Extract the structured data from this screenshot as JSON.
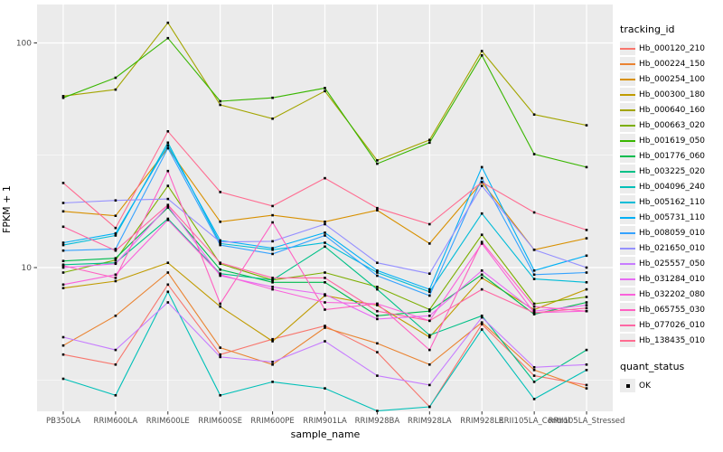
{
  "chart_data": {
    "type": "line",
    "title": "",
    "xlabel": "sample_name",
    "ylabel": "FPKM + 1",
    "y_scale": "log10",
    "y_ticks": [
      10,
      100
    ],
    "y_minor_ticks": [
      3.162,
      31.62
    ],
    "ylim": [
      2.2,
      150
    ],
    "grid": true,
    "panel_bg": "#EBEBEB",
    "grid_color": "#FFFFFF",
    "point_shape": "square",
    "point_color": "#000000",
    "legend": {
      "title": "tracking_id",
      "position": "right"
    },
    "quant_status": {
      "title": "quant_status",
      "items": [
        {
          "label": "OK",
          "shape": "square",
          "color": "#000000"
        }
      ]
    },
    "categories": [
      "PB350LA",
      "RRIM600LA",
      "RRIM600LE",
      "RRIM600SE",
      "RRIM600PE",
      "RRIM901LA",
      "RRIM928BA",
      "RRIM928LA",
      "RRIM928LE",
      "RRII105LA_Control",
      "RRII105LA_Stressed"
    ],
    "series": [
      {
        "name": "Hb_000120_210",
        "color": "#F8766D",
        "values": [
          4.1,
          3.7,
          8.4,
          4.1,
          4.8,
          5.5,
          4.2,
          2.4,
          5.6,
          3.3,
          3.0
        ]
      },
      {
        "name": "Hb_000224_150",
        "color": "#EA8331",
        "values": [
          4.5,
          6.1,
          9.5,
          4.4,
          3.7,
          5.4,
          4.6,
          3.7,
          5.7,
          3.5,
          2.9
        ]
      },
      {
        "name": "Hb_000254_100",
        "color": "#D89000",
        "values": [
          17.8,
          17.0,
          34.0,
          16.0,
          17.1,
          16.0,
          18.0,
          12.8,
          24.0,
          12.0,
          13.5
        ]
      },
      {
        "name": "Hb_000300_180",
        "color": "#C09B00",
        "values": [
          8.1,
          8.7,
          10.5,
          6.7,
          4.7,
          7.5,
          6.8,
          4.9,
          9.0,
          6.5,
          8.0
        ]
      },
      {
        "name": "Hb_000640_160",
        "color": "#A3A500",
        "values": [
          58,
          62,
          123,
          53,
          46,
          61,
          30,
          37,
          92,
          48,
          43
        ]
      },
      {
        "name": "Hb_000663_020",
        "color": "#7CAE00",
        "values": [
          9.5,
          10.8,
          23.1,
          10.4,
          8.8,
          9.5,
          8.2,
          6.5,
          14.0,
          6.9,
          7.4
        ]
      },
      {
        "name": "Hb_001619_050",
        "color": "#39B600",
        "values": [
          57,
          70,
          105,
          55,
          57,
          63,
          29,
          36,
          88,
          32,
          28
        ]
      },
      {
        "name": "Hb_001776_060",
        "color": "#00BB4E",
        "values": [
          10.7,
          11.0,
          18.5,
          9.8,
          8.6,
          8.6,
          6.1,
          6.4,
          9.3,
          6.2,
          7.0
        ]
      },
      {
        "name": "Hb_003225_020",
        "color": "#00C087",
        "values": [
          10.3,
          10.5,
          16.5,
          9.4,
          8.8,
          12.4,
          8.0,
          5.0,
          6.1,
          3.1,
          4.3
        ]
      },
      {
        "name": "Hb_004096_240",
        "color": "#00C0B8",
        "values": [
          3.2,
          2.7,
          7.8,
          2.7,
          3.1,
          2.9,
          2.3,
          2.4,
          5.3,
          2.6,
          3.5
        ]
      },
      {
        "name": "Hb_005162_110",
        "color": "#00BCD8",
        "values": [
          12.6,
          13.9,
          36.0,
          12.8,
          12.0,
          12.9,
          9.5,
          7.8,
          17.4,
          8.9,
          8.6
        ]
      },
      {
        "name": "Hb_005731_110",
        "color": "#00B0F6",
        "values": [
          12.9,
          14.2,
          35.0,
          13.2,
          12.2,
          14.3,
          9.7,
          8.0,
          28.0,
          9.7,
          11.3
        ]
      },
      {
        "name": "Hb_008059_010",
        "color": "#35A2FF",
        "values": [
          11.9,
          12.1,
          34.0,
          12.6,
          11.5,
          13.9,
          9.2,
          7.5,
          25.0,
          9.3,
          9.5
        ]
      },
      {
        "name": "Hb_021650_010",
        "color": "#9590FF",
        "values": [
          19.4,
          19.9,
          20.2,
          13.0,
          13.1,
          15.6,
          10.5,
          9.4,
          23.1,
          12.0,
          10.0
        ]
      },
      {
        "name": "Hb_025557_050",
        "color": "#C77CFF",
        "values": [
          4.9,
          4.3,
          7.0,
          4.0,
          3.8,
          4.7,
          3.3,
          3.0,
          6.0,
          3.6,
          3.7
        ]
      },
      {
        "name": "Hb_031284_010",
        "color": "#E76BF3",
        "values": [
          10.0,
          10.4,
          18.8,
          9.2,
          8.2,
          7.6,
          5.9,
          6.1,
          9.7,
          6.4,
          6.8
        ]
      },
      {
        "name": "Hb_032202_080",
        "color": "#FA62DB",
        "values": [
          8.4,
          9.3,
          16.3,
          9.3,
          8.0,
          7.0,
          6.9,
          5.8,
          12.8,
          6.3,
          6.4
        ]
      },
      {
        "name": "Hb_065755_030",
        "color": "#FF61C2",
        "values": [
          10.2,
          9.0,
          26.9,
          6.9,
          15.9,
          6.5,
          6.9,
          4.3,
          13.0,
          6.7,
          6.4
        ]
      },
      {
        "name": "Hb_077026_010",
        "color": "#FF67A4",
        "values": [
          15.2,
          11.9,
          19.0,
          10.5,
          9.0,
          9.0,
          6.4,
          5.8,
          8.0,
          6.3,
          6.6
        ]
      },
      {
        "name": "Hb_138435_010",
        "color": "#FF6C91",
        "values": [
          23.8,
          15.0,
          40.4,
          21.7,
          18.8,
          25.0,
          18.4,
          15.6,
          24.0,
          17.6,
          14.7
        ]
      }
    ]
  }
}
